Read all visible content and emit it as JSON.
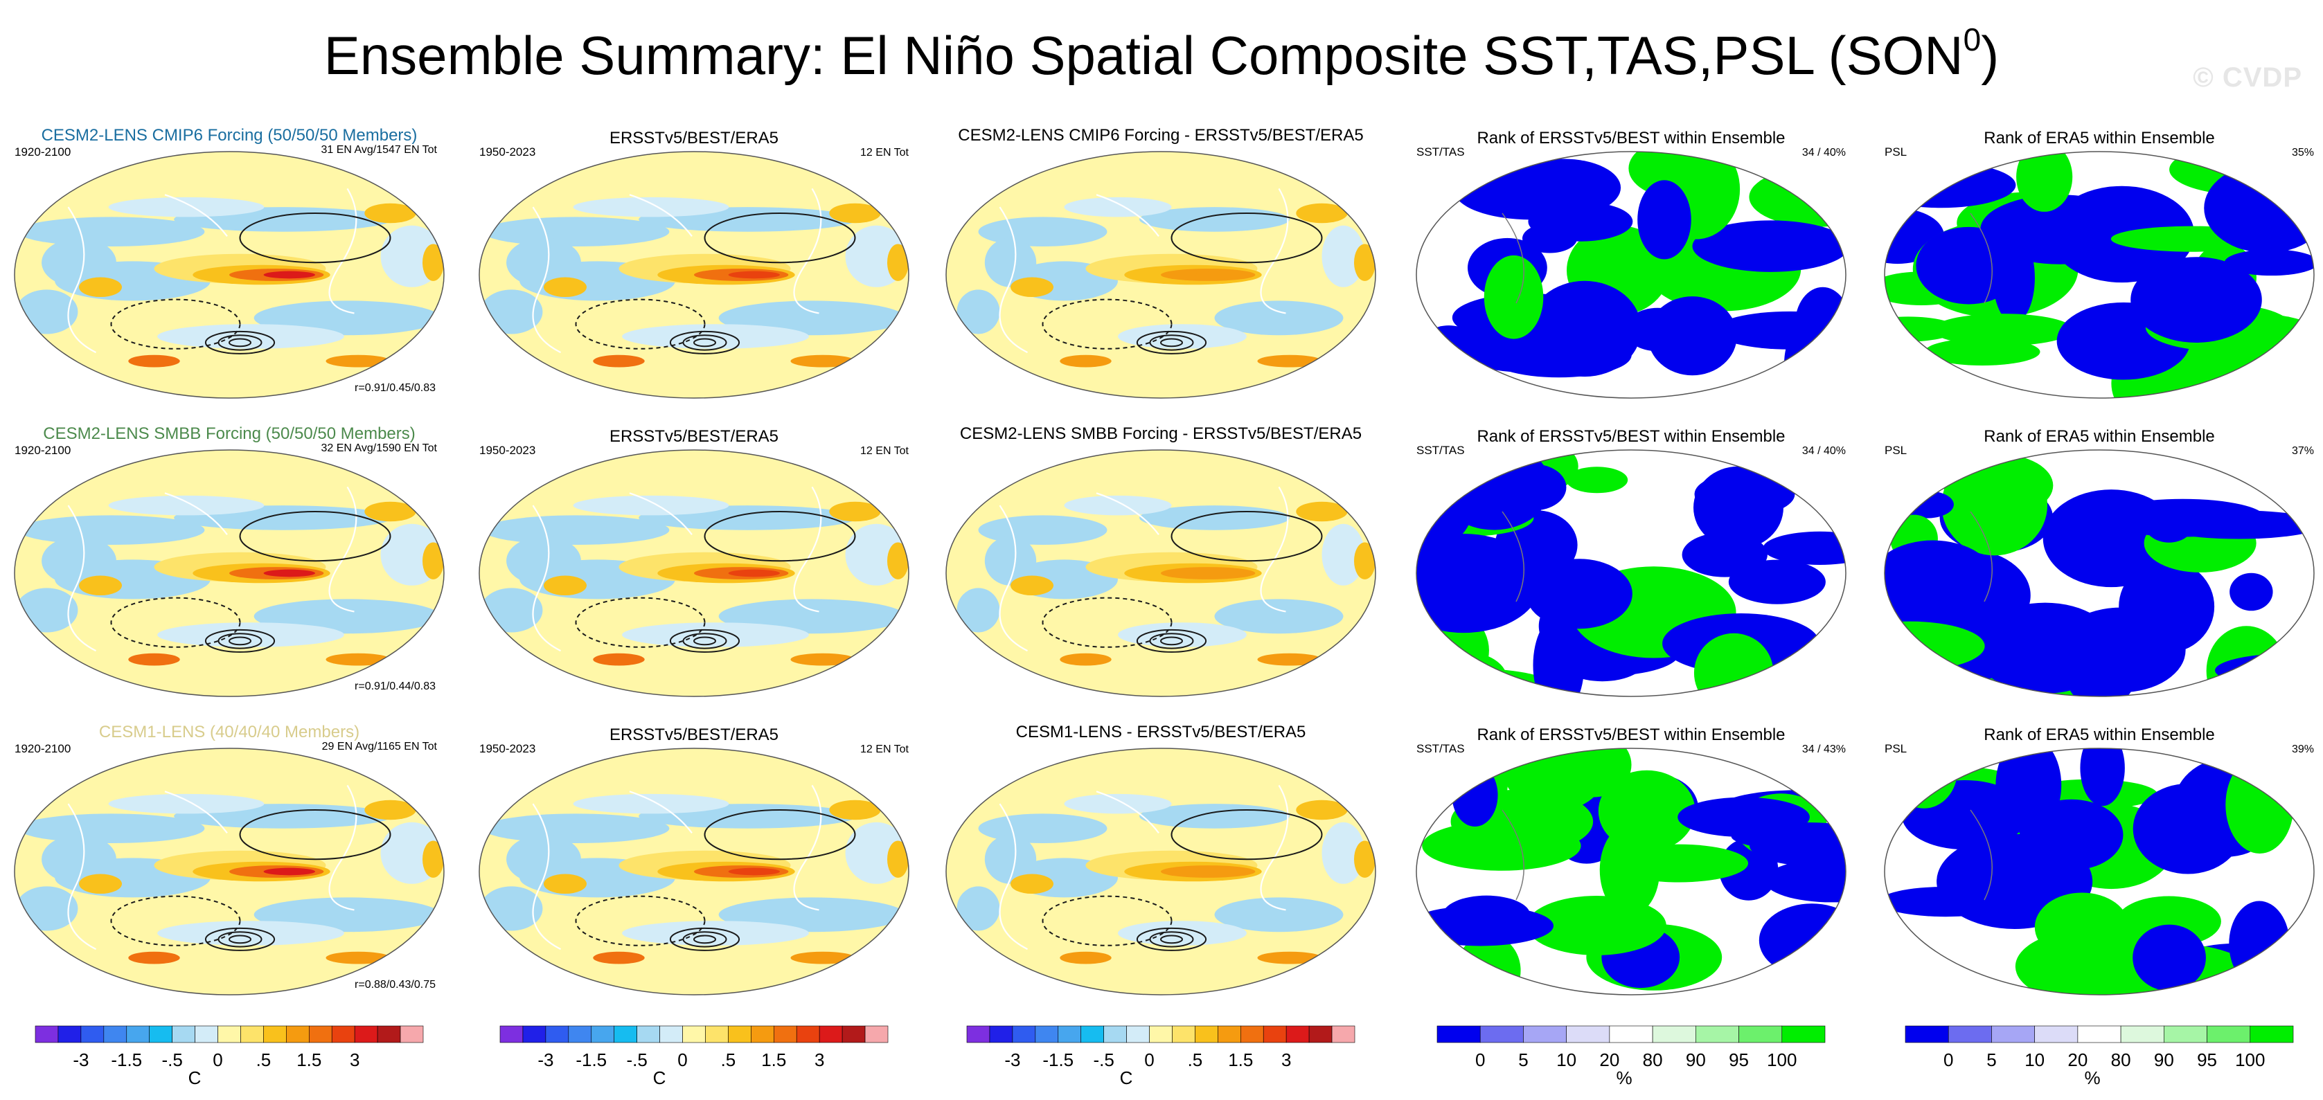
{
  "title": {
    "main": "Ensemble Summary: El Niño Spatial Composite SST,TAS,PSL (SON",
    "superscript": "0",
    "close": ")"
  },
  "watermark": "© CVDP",
  "colors": {
    "anom_palette": [
      "#7d2fe0",
      "#2020e8",
      "#2f5cf0",
      "#3f86f0",
      "#47a6ee",
      "#16bcf0",
      "#a6d9f2",
      "#d3ecf8",
      "#fff7a8",
      "#fde36a",
      "#f9c11c",
      "#f59b10",
      "#f07010",
      "#e9420f",
      "#dc1a1a",
      "#b21a1a",
      "#f6a8ac"
    ],
    "rank_palette": [
      "#0000ee",
      "#6c6cf0",
      "#a6a6f5",
      "#dcdcf8",
      "#ffffff",
      "#ddf8dd",
      "#a6f5a6",
      "#6cf06c",
      "#00ee00"
    ],
    "model_label_1": "#1a6ea0",
    "model_label_2": "#4c8a4c",
    "model_label_3": "#d8cc8c"
  },
  "rows": [
    {
      "model": "CESM2-LENS CMIP6 Forcing (50/50/50 Members)",
      "model_period": "1920-2100",
      "model_count": "31 EN Avg/1547 EN Tot",
      "model_corr": "r=0.91/0.45/0.83",
      "obs_title": "ERSSTv5/BEST/ERA5",
      "obs_period": "1950-2023",
      "obs_count": "12 EN Tot",
      "diff_title": "CESM2-LENS CMIP6 Forcing - ERSSTv5/BEST/ERA5",
      "rank1_title": "Rank of ERSSTv5/BEST within Ensemble",
      "rank1_left": "SST/TAS",
      "rank1_right": "34 /  40%",
      "rank2_title": "Rank of ERA5 within Ensemble",
      "rank2_left": "PSL",
      "rank2_right": "35%"
    },
    {
      "model": "CESM2-LENS SMBB Forcing (50/50/50 Members)",
      "model_period": "1920-2100",
      "model_count": "32 EN Avg/1590 EN Tot",
      "model_corr": "r=0.91/0.44/0.83",
      "obs_title": "ERSSTv5/BEST/ERA5",
      "obs_period": "1950-2023",
      "obs_count": "12 EN Tot",
      "diff_title": "CESM2-LENS SMBB Forcing - ERSSTv5/BEST/ERA5",
      "rank1_title": "Rank of ERSSTv5/BEST within Ensemble",
      "rank1_left": "SST/TAS",
      "rank1_right": "34 /  40%",
      "rank2_title": "Rank of ERA5 within Ensemble",
      "rank2_left": "PSL",
      "rank2_right": "37%"
    },
    {
      "model": "CESM1-LENS (40/40/40 Members)",
      "model_period": "1920-2100",
      "model_count": "29 EN Avg/1165 EN Tot",
      "model_corr": "r=0.88/0.43/0.75",
      "obs_title": "ERSSTv5/BEST/ERA5",
      "obs_period": "1950-2023",
      "obs_count": "12 EN Tot",
      "diff_title": "CESM1-LENS - ERSSTv5/BEST/ERA5",
      "rank1_title": "Rank of ERSSTv5/BEST within Ensemble",
      "rank1_left": "SST/TAS",
      "rank1_right": "34 /  43%",
      "rank2_title": "Rank of ERA5 within Ensemble",
      "rank2_left": "PSL",
      "rank2_right": "39%"
    }
  ],
  "colorbars": {
    "anom": {
      "labels": [
        "-3",
        "-1.5",
        "-.5",
        "0",
        ".5",
        "1.5",
        "3"
      ],
      "units": "C"
    },
    "rank": {
      "labels": [
        "0",
        "5",
        "10",
        "20",
        "80",
        "90",
        "95",
        "100"
      ],
      "units": "%"
    }
  },
  "chart_data": {
    "type": "heatmap",
    "title": "Ensemble Summary: El Niño Spatial Composite SST,TAS,PSL (SON0)",
    "panels_per_row": [
      "model composite",
      "observed composite",
      "model - observed",
      "rank SST/TAS",
      "rank PSL"
    ],
    "anomaly_colorbar_levels": [
      -3,
      -2.5,
      -2,
      -1.5,
      -1,
      -0.5,
      -0.25,
      0,
      0.25,
      0.5,
      1,
      1.5,
      2,
      2.5,
      3,
      4
    ],
    "rank_colorbar_levels": [
      0,
      5,
      10,
      20,
      80,
      90,
      95,
      100
    ],
    "anomaly_units": "C",
    "rank_units": "%"
  }
}
